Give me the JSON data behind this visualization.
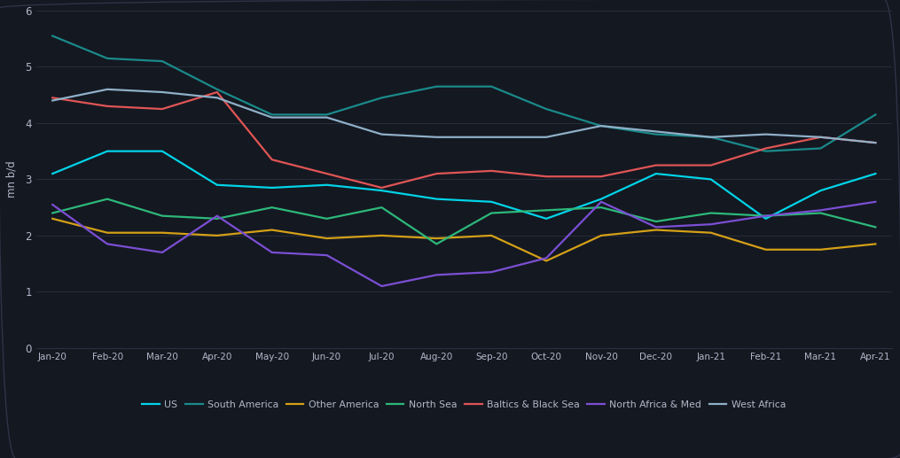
{
  "background_color": "#141821",
  "plot_bg_color": "#141821",
  "text_color": "#b0b8c8",
  "grid_color": "#2a3040",
  "border_color": "#2e3347",
  "x_labels": [
    "Jan-20",
    "Feb-20",
    "Mar-20",
    "Apr-20",
    "May-20",
    "Jun-20",
    "Jul-20",
    "Aug-20",
    "Sep-20",
    "Oct-20",
    "Nov-20",
    "Dec-20",
    "Jan-21",
    "Feb-21",
    "Mar-21",
    "Apr-21"
  ],
  "ylabel": "mn b/d",
  "ylim": [
    0,
    6
  ],
  "yticks": [
    0,
    1,
    2,
    3,
    4,
    5,
    6
  ],
  "series": [
    {
      "label": "US",
      "color": "#00d4e8",
      "linewidth": 1.6,
      "data": [
        3.1,
        3.5,
        3.5,
        2.9,
        2.85,
        2.9,
        2.8,
        2.65,
        2.6,
        2.3,
        2.65,
        3.1,
        3.0,
        2.3,
        2.8,
        3.1
      ]
    },
    {
      "label": "South America",
      "color": "#1a8a8a",
      "linewidth": 1.6,
      "data": [
        5.55,
        5.15,
        5.1,
        4.6,
        4.15,
        4.15,
        4.45,
        4.65,
        4.65,
        4.25,
        3.95,
        3.8,
        3.75,
        3.5,
        3.55,
        4.15
      ]
    },
    {
      "label": "Other America",
      "color": "#d4a017",
      "linewidth": 1.6,
      "data": [
        2.3,
        2.05,
        2.05,
        2.0,
        2.1,
        1.95,
        2.0,
        1.95,
        2.0,
        1.55,
        2.0,
        2.1,
        2.05,
        1.75,
        1.75,
        1.85
      ]
    },
    {
      "label": "North Sea",
      "color": "#2db87a",
      "linewidth": 1.6,
      "data": [
        2.4,
        2.65,
        2.35,
        2.3,
        2.5,
        2.3,
        2.5,
        1.85,
        2.4,
        2.45,
        2.5,
        2.25,
        2.4,
        2.35,
        2.4,
        2.15
      ]
    },
    {
      "label": "Baltics & Black Sea",
      "color": "#e05555",
      "linewidth": 1.6,
      "data": [
        4.45,
        4.3,
        4.25,
        4.55,
        3.35,
        3.1,
        2.85,
        3.1,
        3.15,
        3.05,
        3.05,
        3.25,
        3.25,
        3.55,
        3.75,
        3.65
      ]
    },
    {
      "label": "North Africa & Med",
      "color": "#7b4fd4",
      "linewidth": 1.6,
      "data": [
        2.55,
        1.85,
        1.7,
        2.35,
        1.7,
        1.65,
        1.1,
        1.3,
        1.35,
        1.6,
        2.6,
        2.15,
        2.2,
        2.35,
        2.45,
        2.6
      ]
    },
    {
      "label": "West Africa",
      "color": "#8fb0c8",
      "linewidth": 1.6,
      "data": [
        4.4,
        4.6,
        4.55,
        4.45,
        4.1,
        4.1,
        3.8,
        3.75,
        3.75,
        3.75,
        3.95,
        3.85,
        3.75,
        3.8,
        3.75,
        3.65
      ]
    }
  ]
}
